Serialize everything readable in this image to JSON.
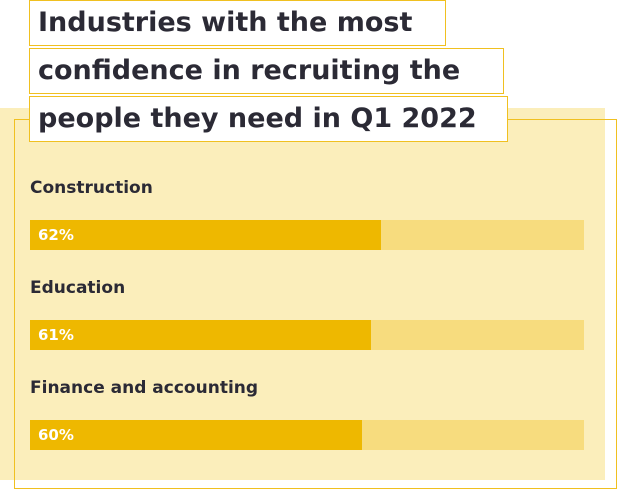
{
  "title_lines": [
    "Industries with the most",
    "confidence in recruiting the",
    "people they need in Q1 2022"
  ],
  "colors": {
    "accent": "#eeb800",
    "track": "#f7dc7e",
    "panel": "#fbeebb",
    "border": "#f0c020",
    "text": "#2b2a35"
  },
  "chart_data": {
    "type": "bar",
    "orientation": "horizontal",
    "title": "Industries with the most confidence in recruiting the people they need in Q1 2022",
    "categories": [
      "Construction",
      "Education",
      "Finance and accounting"
    ],
    "values": [
      62,
      61,
      60
    ],
    "value_labels": [
      "62%",
      "61%",
      "60%"
    ],
    "xlim": [
      0,
      100
    ],
    "unit": "%",
    "grid": false,
    "legend": "none"
  }
}
